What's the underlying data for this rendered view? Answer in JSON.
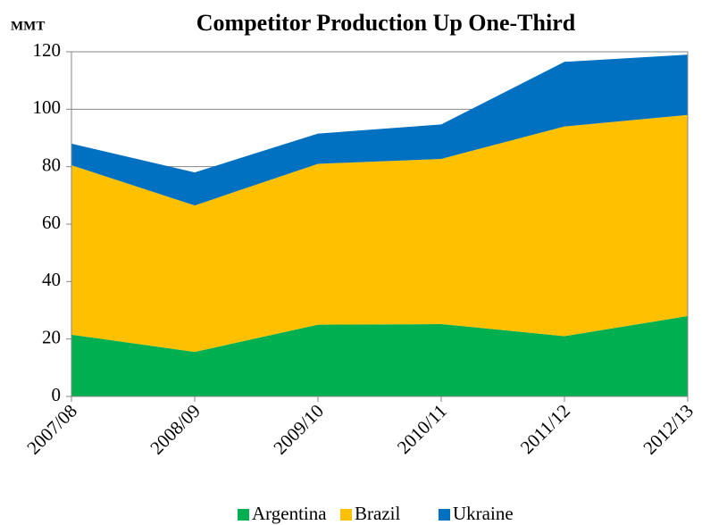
{
  "chart_data": {
    "type": "stacked_area",
    "title": "Competitor Production Up One-Third",
    "y_label": "MMT",
    "categories": [
      "2007/08",
      "2008/09",
      "2009/10",
      "2010/11",
      "2011/12",
      "2012/13"
    ],
    "series": [
      {
        "name": "Argentina",
        "color": "#00b050",
        "values": [
          21.5,
          15.5,
          25,
          25.2,
          21,
          28
        ]
      },
      {
        "name": "Brazil",
        "color": "#ffc000",
        "values": [
          59,
          51,
          56,
          57.5,
          73,
          70
        ]
      },
      {
        "name": "Ukraine",
        "color": "#0070c0",
        "values": [
          7.5,
          11.5,
          10.5,
          12,
          22.5,
          21
        ]
      }
    ],
    "ylim": [
      0,
      120
    ],
    "yticks": [
      0,
      20,
      40,
      60,
      80,
      100,
      120
    ],
    "grid": true,
    "legend": "bottom"
  }
}
